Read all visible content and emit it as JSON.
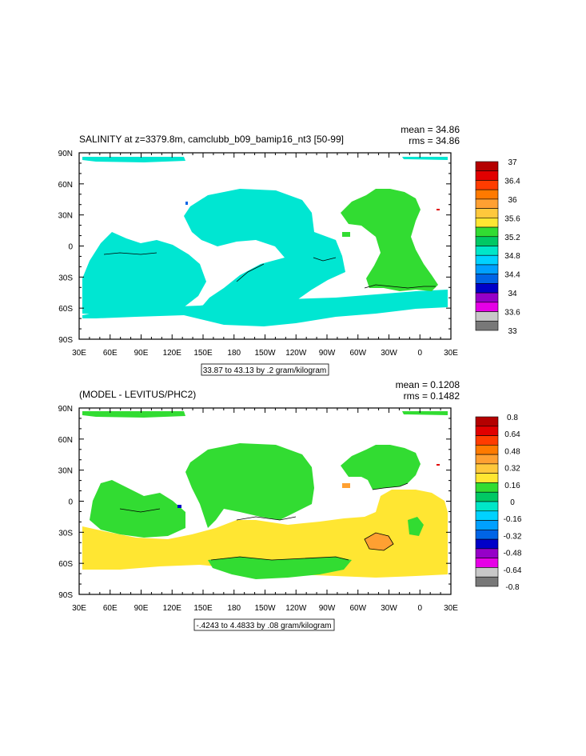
{
  "x_tick_labels": [
    "30E",
    "60E",
    "90E",
    "120E",
    "150E",
    "180",
    "150W",
    "120W",
    "90W",
    "60W",
    "30W",
    "0",
    "30E"
  ],
  "y_tick_labels": [
    "90N",
    "60N",
    "30N",
    "0",
    "30S",
    "60S",
    "90S"
  ],
  "panels": [
    {
      "title": "SALINITY at z=3379.8m, camclubb_b09_bamip16_nt3 [50-99]",
      "mean_text": "mean = 34.86",
      "rms_text": "rms = 34.86",
      "contour_info": "33.87 to 43.13 by .2 gram/kilogram",
      "colorbar": {
        "labels": [
          "37",
          "36.4",
          "36",
          "35.6",
          "35.2",
          "34.8",
          "34.4",
          "34",
          "33.6",
          "33"
        ],
        "colors_top_to_bottom": [
          "#b40000",
          "#e10000",
          "#ff3c00",
          "#ff7a00",
          "#ffa032",
          "#ffc83c",
          "#ffe632",
          "#32dc32",
          "#00c864",
          "#00e6c8",
          "#00d2ff",
          "#00a0ff",
          "#0064e6",
          "#0000c8",
          "#9600c8",
          "#e600e6",
          "#c8c8c8",
          "#787878"
        ],
        "map_fill": "#00e6d2"
      }
    },
    {
      "title": "(MODEL - LEVITUS/PHC2)",
      "mean_text": "mean = 0.1208",
      "rms_text": "rms = 0.1482",
      "contour_info": "-.4243 to 4.4833 by .08 gram/kilogram",
      "colorbar": {
        "labels": [
          "0.8",
          "0.64",
          "0.48",
          "0.32",
          "0.16",
          "0",
          "-0.16",
          "-0.32",
          "-0.48",
          "-0.64",
          "-0.8"
        ],
        "colors_top_to_bottom": [
          "#b40000",
          "#e10000",
          "#ff3c00",
          "#ff7a00",
          "#ffa032",
          "#ffc83c",
          "#ffe632",
          "#32dc32",
          "#00c864",
          "#00e6c8",
          "#00d2ff",
          "#00a0ff",
          "#0064e6",
          "#0000c8",
          "#9600c8",
          "#e600e6",
          "#c8c8c8",
          "#787878"
        ],
        "map_fill": "#32dc32",
        "map_fill_secondary": "#ffe632"
      }
    }
  ]
}
